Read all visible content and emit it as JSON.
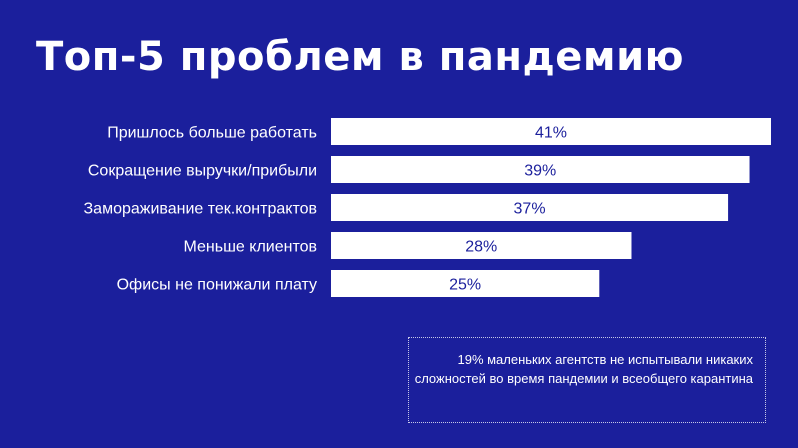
{
  "title": "Топ-5 проблем в пандемию",
  "chart_data": {
    "type": "bar",
    "orientation": "horizontal",
    "categories": [
      "Пришлось больше работать",
      "Сокращение выручки/прибыли",
      "Замораживание тек.контрактов",
      "Меньше клиентов",
      "Офисы не понижали плату"
    ],
    "values": [
      41,
      39,
      37,
      28,
      25
    ],
    "value_labels": [
      "41%",
      "39%",
      "37%",
      "28%",
      "25%"
    ],
    "unit": "%",
    "bar_color": "#ffffff",
    "label_color": "#1b1f9c",
    "grid": false,
    "legend": "none"
  },
  "note": {
    "text": "19% маленьких агентств не испытывали никаких сложностей во время пандемии и всеобщего карантина"
  },
  "colors": {
    "background": "#1b1f9c",
    "text": "#ffffff"
  }
}
